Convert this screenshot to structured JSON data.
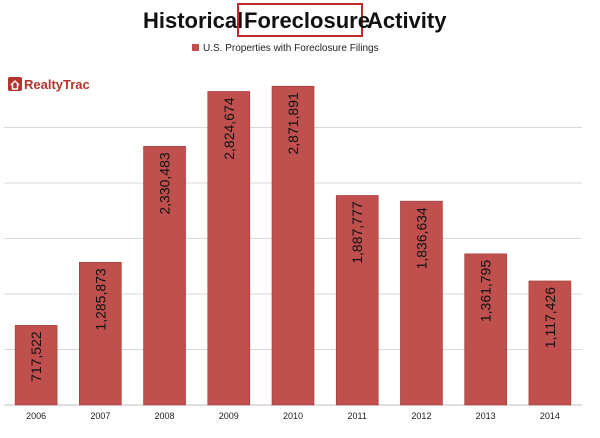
{
  "chart_data": {
    "type": "bar",
    "title_parts": [
      "Historical",
      "Foreclosure",
      "Activity"
    ],
    "title": "Historical Foreclosure Activity",
    "highlight_word": "Foreclosure",
    "legend": "U.S. Properties with Foreclosure Filings",
    "categories": [
      "2006",
      "2007",
      "2008",
      "2009",
      "2010",
      "2011",
      "2012",
      "2013",
      "2014"
    ],
    "series": [
      {
        "name": "U.S. Properties with Foreclosure Filings",
        "values": [
          717522,
          1285873,
          2330483,
          2824674,
          2871891,
          1887777,
          1836634,
          1361795,
          1117426
        ],
        "labels": [
          "717,522",
          "1,285,873",
          "2,330,483",
          "2,824,674",
          "2,871,891",
          "1,887,777",
          "1,836,634",
          "1,361,795",
          "1,117,426"
        ]
      }
    ],
    "ylim": [
      0,
      3000000
    ],
    "grid": true,
    "legend_position": "top-center",
    "colors": {
      "bar": "#c0504d",
      "bar_edge": "#9c3a37",
      "highlight_box": "#c0282d",
      "grid": "#d9d9d9"
    }
  },
  "logo": {
    "text": "RealtyTrac",
    "icon": "house-icon",
    "color": "#b5332e"
  }
}
